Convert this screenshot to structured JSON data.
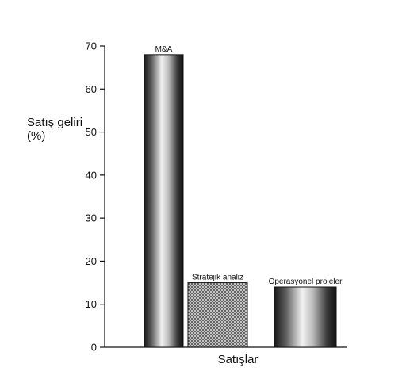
{
  "chart_data": {
    "type": "bar",
    "title": "",
    "ylabel_lines": [
      "Satış geliri",
      "(%)"
    ],
    "xlabel": "Satışlar",
    "ylim": [
      0,
      70
    ],
    "yticks": [
      0,
      10,
      20,
      30,
      40,
      50,
      60,
      70
    ],
    "categories": [
      "M&A",
      "Stratejik analiz",
      "Operasyonel projeler"
    ],
    "values": [
      68,
      15,
      14
    ],
    "bar_styles": [
      "metal-gradient",
      "crosshatch",
      "metal-gradient"
    ],
    "grid": false,
    "legend": "none"
  }
}
